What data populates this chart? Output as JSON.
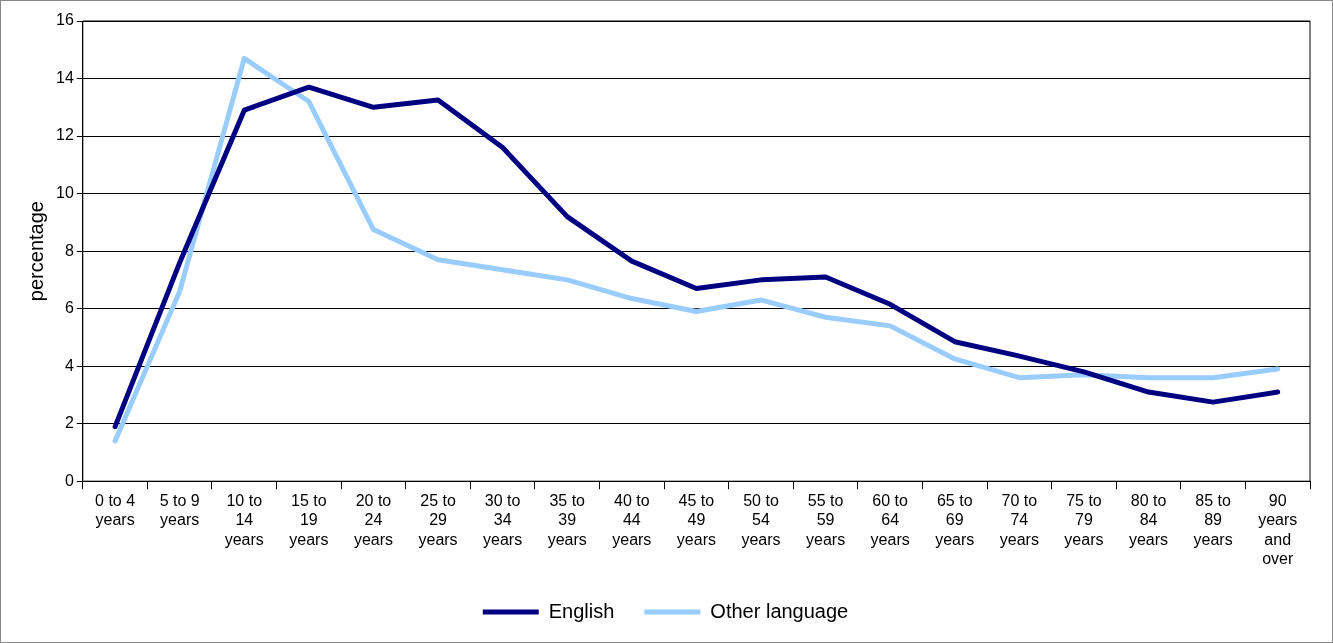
{
  "chart_data": {
    "type": "line",
    "ylabel": "percentage",
    "categories": [
      "0 to 4 years",
      "5 to 9 years",
      "10 to 14 years",
      "15 to 19 years",
      "20 to 24 years",
      "25 to 29 years",
      "30 to 34 years",
      "35 to 39 years",
      "40 to 44 years",
      "45 to 49 years",
      "50 to 54 years",
      "55 to 59 years",
      "60 to 64 years",
      "65 to 69 years",
      "70 to 74 years",
      "75 to 79 years",
      "80 to 84 years",
      "85 to 89 years",
      "90 years and over"
    ],
    "series": [
      {
        "name": "English",
        "color": "#000080",
        "values": [
          1.9,
          7.6,
          12.9,
          13.7,
          13.0,
          13.25,
          11.6,
          9.2,
          7.65,
          6.7,
          7.0,
          7.1,
          6.15,
          4.85,
          4.35,
          3.8,
          3.1,
          2.75,
          3.1
        ]
      },
      {
        "name": "Other language",
        "color": "#99ccff",
        "values": [
          1.4,
          6.6,
          14.7,
          13.2,
          8.75,
          7.7,
          7.35,
          7.0,
          6.35,
          5.9,
          6.3,
          5.7,
          5.4,
          4.25,
          3.6,
          3.7,
          3.6,
          3.6,
          3.9
        ]
      }
    ],
    "ylim": [
      0,
      16
    ],
    "yticks": [
      0,
      2,
      4,
      6,
      8,
      10,
      12,
      14,
      16
    ],
    "grid": "y",
    "legend": "bottom",
    "marker": "none",
    "line_style": "solid"
  }
}
